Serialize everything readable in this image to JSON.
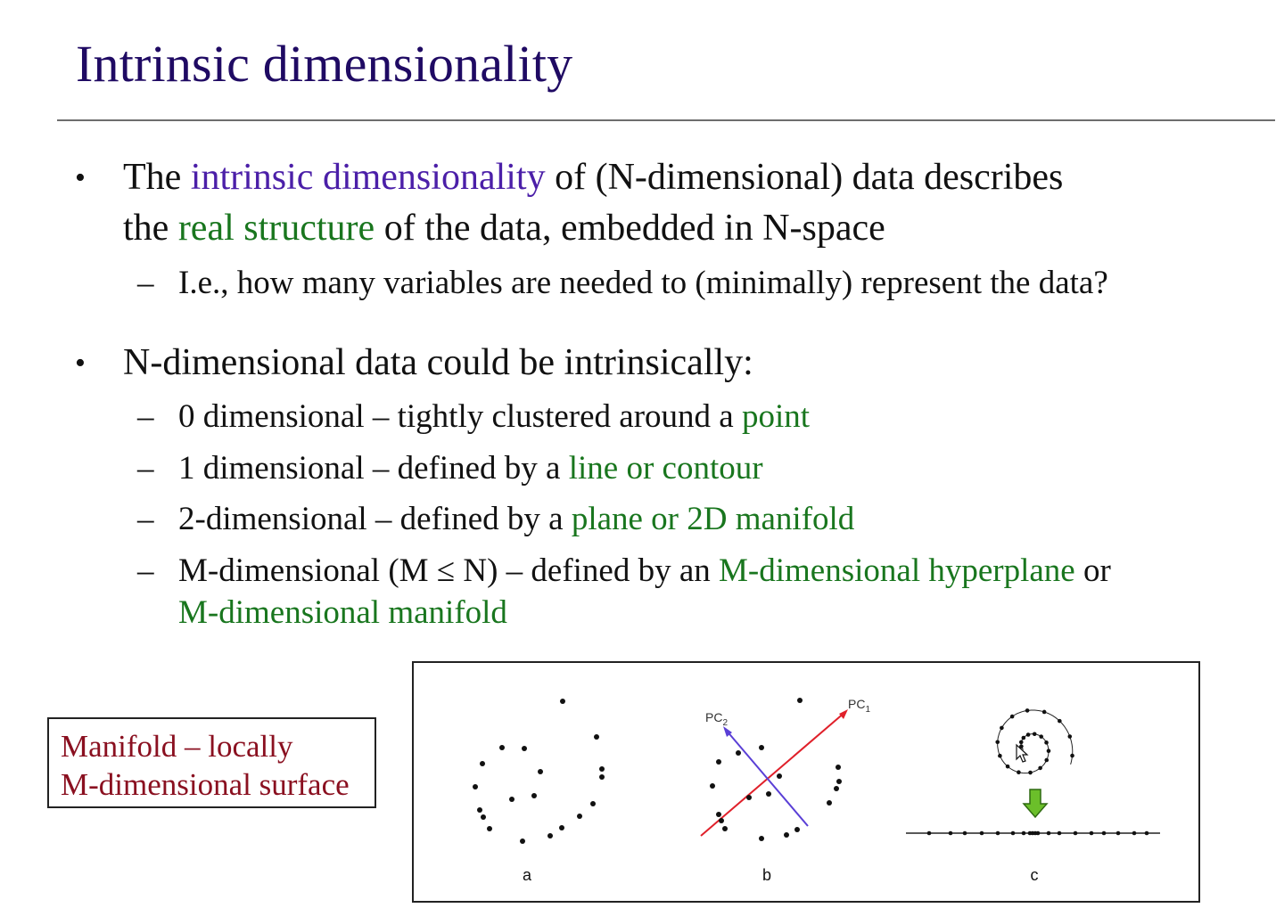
{
  "title": "Intrinsic dimensionality",
  "bullet1": {
    "line1_a": "The ",
    "line1_b": "intrinsic dimensionality",
    "line1_c": " of (N-dimensional) data describes",
    "line2_a": "the ",
    "line2_b": "real structure",
    "line2_c": " of the data, embedded in N-space",
    "sub": "I.e., how many variables are needed to (minimally) represent the data?"
  },
  "bullet2": {
    "text": "N-dimensional data could be intrinsically:",
    "items": [
      {
        "plain": "0 dimensional – tightly clustered around a ",
        "highlight": "point"
      },
      {
        "plain": "1 dimensional – defined by a ",
        "highlight": "line or contour"
      },
      {
        "plain": "2-dimensional – defined by a ",
        "highlight": "plane or 2D manifold"
      },
      {
        "plain": "M-dimensional (M ≤ N) – defined by an ",
        "highlight": "M-dimensional hyperplane",
        "tail": " or",
        "line2": "M-dimensional manifold"
      }
    ]
  },
  "callout": {
    "line1": "Manifold – locally",
    "line2": "M-dimensional surface"
  },
  "figure": {
    "panel_labels": [
      "a",
      "b",
      "c"
    ],
    "pc1": "PC",
    "pc1_sub": "1",
    "pc2": "PC",
    "pc2_sub": "2"
  },
  "colors": {
    "title": "#1f0a63",
    "highlight_purple": "#4b1fa8",
    "highlight_green": "#19761e",
    "callout_text": "#8a1020",
    "pc1_arrow": "#e0202a",
    "pc2_arrow": "#5a3fd6",
    "down_arrow": "#6bbf2a"
  },
  "icons": [
    "cursor-icon",
    "down-arrow-icon"
  ]
}
